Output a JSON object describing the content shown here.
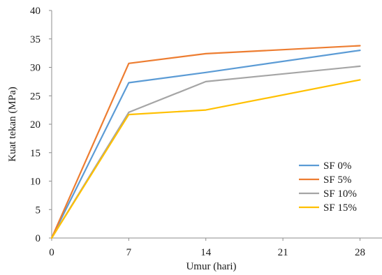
{
  "chart_data": {
    "type": "line",
    "xlabel": "Umur (hari)",
    "ylabel": "Kuat tekan (MPa)",
    "x": [
      0,
      7,
      14,
      28
    ],
    "x_ticks": [
      "0",
      "7",
      "14",
      "21",
      "28"
    ],
    "y_ticks": [
      "0",
      "5",
      "10",
      "15",
      "20",
      "25",
      "30",
      "35",
      "40"
    ],
    "xlim": [
      0,
      30
    ],
    "ylim": [
      0,
      40
    ],
    "grid": false,
    "legend_position": "bottom-right",
    "series": [
      {
        "name": "SF 0%",
        "color": "#5b9bd5",
        "values": [
          0,
          27.3,
          29.1,
          33.0
        ]
      },
      {
        "name": "SF 5%",
        "color": "#ed7d31",
        "values": [
          0,
          30.7,
          32.4,
          33.8
        ]
      },
      {
        "name": "SF 10%",
        "color": "#a5a5a5",
        "values": [
          0,
          22.1,
          27.5,
          30.2
        ]
      },
      {
        "name": "SF 15%",
        "color": "#ffc000",
        "values": [
          0,
          21.7,
          22.5,
          27.8
        ]
      }
    ]
  }
}
